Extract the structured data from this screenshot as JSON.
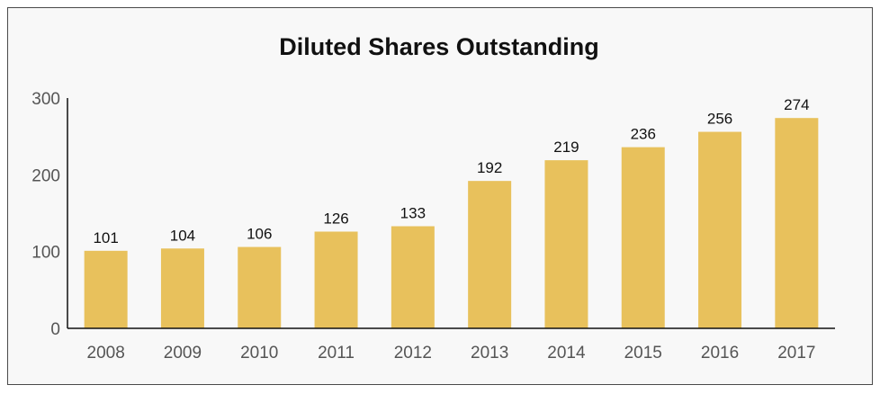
{
  "chart_data": {
    "type": "bar",
    "title": "Diluted Shares Outstanding",
    "xlabel": "",
    "ylabel": "",
    "categories": [
      "2008",
      "2009",
      "2010",
      "2011",
      "2012",
      "2013",
      "2014",
      "2015",
      "2016",
      "2017"
    ],
    "values": [
      101,
      104,
      106,
      126,
      133,
      192,
      219,
      236,
      256,
      274
    ],
    "data_labels": [
      "101",
      "104",
      "106",
      "126",
      "133",
      "192",
      "219",
      "236",
      "256",
      "274"
    ],
    "ylim": [
      0,
      300
    ],
    "yticks": [
      0,
      100,
      200,
      300
    ],
    "grid": false,
    "legend": "none",
    "bar_color": "#e8c15c"
  }
}
